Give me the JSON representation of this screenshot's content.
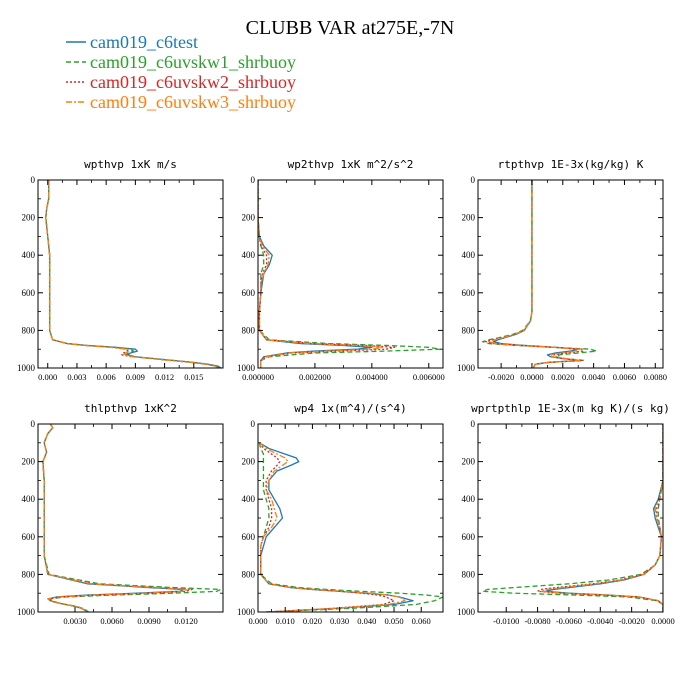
{
  "figure": {
    "title": "CLUBB VAR at275E,-7N"
  },
  "legend": [
    {
      "name": "cam019_c6test",
      "color": "#1f77b4",
      "dash": "solid"
    },
    {
      "name": "cam019_c6uvskw1_shrbuoy",
      "color": "#2ca02c",
      "dash": "dashed"
    },
    {
      "name": "cam019_c6uvskw2_shrbuoy",
      "color": "#d62728",
      "dash": "dotted"
    },
    {
      "name": "cam019_c6uvskw3_shrbuoy",
      "color": "#ff7f0e",
      "dash": "dashdot"
    }
  ],
  "chart_data": [
    {
      "type": "line",
      "title": "wpthvp  1xK m/s",
      "xlim": [
        -0.001,
        0.018
      ],
      "ylim": [
        1000,
        0
      ],
      "x_ticks": [
        0.0,
        0.003,
        0.006,
        0.009,
        0.012,
        0.015
      ],
      "x_tick_labels": [
        "0.000",
        "0.003",
        "0.006",
        "0.009",
        "0.012",
        "0.015"
      ],
      "y_ticks": [
        0,
        200,
        400,
        600,
        800,
        1000
      ],
      "y_tick_labels": [
        "0",
        "200",
        "400",
        "600",
        "800",
        "1000"
      ],
      "y": [
        0,
        100,
        150,
        200,
        300,
        400,
        500,
        600,
        700,
        800,
        850,
        870,
        880,
        890,
        900,
        910,
        920,
        930,
        940,
        950,
        960,
        970,
        980,
        990,
        1000
      ],
      "series": [
        {
          "values": [
            0.0001,
            0.0001,
            -0.0001,
            -0.0002,
            0.0,
            0.0002,
            0.0002,
            0.0002,
            0.0002,
            0.0002,
            0.0005,
            0.002,
            0.004,
            0.007,
            0.009,
            0.0092,
            0.0085,
            0.0082,
            0.009,
            0.011,
            0.013,
            0.015,
            0.0165,
            0.0175,
            0.0178
          ]
        },
        {
          "values": [
            0.0001,
            0.0001,
            -0.0001,
            -0.0002,
            0.0,
            0.0002,
            0.0002,
            0.0002,
            0.0002,
            0.0002,
            0.0005,
            0.002,
            0.004,
            0.0068,
            0.0085,
            0.0088,
            0.0083,
            0.008,
            0.0088,
            0.0108,
            0.0128,
            0.0148,
            0.0163,
            0.0173,
            0.0176
          ]
        },
        {
          "values": [
            0.0001,
            0.0001,
            -0.0001,
            -0.0002,
            0.0,
            0.0002,
            0.0002,
            0.0002,
            0.0002,
            0.0002,
            0.0005,
            0.002,
            0.0038,
            0.0065,
            0.008,
            0.0082,
            0.0078,
            0.0076,
            0.0086,
            0.0106,
            0.0126,
            0.0146,
            0.0162,
            0.0172,
            0.0175
          ]
        },
        {
          "values": [
            0.0001,
            0.0001,
            -0.0001,
            -0.0002,
            0.0,
            0.0002,
            0.0002,
            0.0002,
            0.0002,
            0.0002,
            0.0005,
            0.002,
            0.0039,
            0.0066,
            0.0082,
            0.0084,
            0.008,
            0.0078,
            0.0087,
            0.0107,
            0.0127,
            0.0147,
            0.0162,
            0.0172,
            0.0175
          ]
        }
      ]
    },
    {
      "type": "line",
      "title": "wp2thvp  1xK m^2/s^2",
      "xlim": [
        0,
        0.0065
      ],
      "ylim": [
        1000,
        0
      ],
      "x_ticks": [
        0.0,
        0.002,
        0.004,
        0.006
      ],
      "x_tick_labels": [
        "0.000000",
        "0.002000",
        "0.004000",
        "0.006000"
      ],
      "y_ticks": [
        0,
        200,
        400,
        600,
        800,
        1000
      ],
      "y_tick_labels": [
        "0",
        "200",
        "400",
        "600",
        "800",
        "1000"
      ],
      "y": [
        0,
        100,
        200,
        300,
        350,
        400,
        450,
        500,
        550,
        600,
        700,
        800,
        850,
        870,
        880,
        890,
        900,
        910,
        920,
        940,
        960,
        980,
        1000
      ],
      "series": [
        {
          "values": [
            0.0,
            0.0,
            0.0,
            5e-05,
            0.0002,
            0.0005,
            0.0004,
            0.0002,
            0.00015,
            0.0001,
            5e-05,
            5e-05,
            0.0003,
            0.0015,
            0.003,
            0.004,
            0.0035,
            0.002,
            0.001,
            0.0002,
            0.0001,
            0.0001,
            0.0001
          ]
        },
        {
          "values": [
            0.0,
            0.0,
            0.0,
            5e-05,
            0.0001,
            0.0002,
            0.0002,
            0.0001,
            0.0001,
            0.0001,
            5e-05,
            5e-05,
            0.0004,
            0.0025,
            0.0045,
            0.006,
            0.0064,
            0.0045,
            0.002,
            0.0004,
            0.0001,
            0.0001,
            0.0001
          ]
        },
        {
          "values": [
            0.0,
            0.0,
            0.0,
            5e-05,
            0.0001,
            0.0003,
            0.0003,
            0.00015,
            0.0001,
            0.0001,
            5e-05,
            5e-05,
            0.0003,
            0.002,
            0.0038,
            0.0048,
            0.0045,
            0.0028,
            0.0012,
            0.0003,
            0.0001,
            0.0001,
            0.0001
          ]
        },
        {
          "values": [
            0.0,
            0.0,
            0.0,
            5e-05,
            0.00015,
            0.0004,
            0.00035,
            0.0002,
            0.0001,
            0.0001,
            5e-05,
            5e-05,
            0.0003,
            0.0018,
            0.0034,
            0.0044,
            0.004,
            0.0024,
            0.0011,
            0.0003,
            0.0001,
            0.0001,
            0.0001
          ]
        }
      ]
    },
    {
      "type": "line",
      "title": "rtpthvp  1E-3x(kg/kg) K",
      "xlim": [
        -0.0035,
        0.0085
      ],
      "ylim": [
        1000,
        0
      ],
      "x_ticks": [
        -0.002,
        0.0,
        0.002,
        0.004,
        0.006,
        0.008
      ],
      "x_tick_labels": [
        "-0.0020",
        "0.0000",
        "0.0020",
        "0.0040",
        "0.0060",
        "0.0080"
      ],
      "y_ticks": [
        0,
        200,
        400,
        600,
        800,
        1000
      ],
      "y_tick_labels": [
        "0",
        "200",
        "400",
        "600",
        "800",
        "1000"
      ],
      "y": [
        0,
        100,
        200,
        300,
        400,
        500,
        600,
        700,
        750,
        800,
        820,
        840,
        850,
        860,
        870,
        880,
        890,
        900,
        910,
        920,
        930,
        940,
        950,
        960,
        970,
        980,
        1000
      ],
      "series": [
        {
          "values": [
            0.0,
            0.0,
            0.0,
            0.0,
            0.0,
            0.0,
            0.0,
            0.0,
            -0.0001,
            -0.0005,
            -0.001,
            -0.0018,
            -0.0022,
            -0.0025,
            -0.002,
            -0.0005,
            0.0015,
            0.003,
            0.0025,
            0.0015,
            0.001,
            0.0012,
            0.002,
            0.003,
            0.001,
            0.0002,
            0.0001
          ]
        },
        {
          "values": [
            0.0,
            0.0,
            0.0,
            0.0,
            0.0,
            0.0,
            0.0,
            0.0,
            -0.0001,
            -0.0006,
            -0.0012,
            -0.0022,
            -0.0028,
            -0.0032,
            -0.0028,
            -0.001,
            0.0015,
            0.0038,
            0.0042,
            0.003,
            0.0018,
            0.0015,
            0.0022,
            0.0034,
            0.0012,
            0.0002,
            0.0001
          ]
        },
        {
          "values": [
            0.0,
            0.0,
            0.0,
            0.0,
            0.0,
            0.0,
            0.0,
            0.0,
            -0.0001,
            -0.0005,
            -0.0011,
            -0.002,
            -0.0026,
            -0.003,
            -0.0025,
            -0.0008,
            0.0014,
            0.0033,
            0.0033,
            0.0022,
            0.0014,
            0.0013,
            0.0021,
            0.0032,
            0.0011,
            0.0002,
            0.0001
          ]
        },
        {
          "values": [
            0.0,
            0.0,
            0.0,
            0.0,
            0.0,
            0.0,
            0.0,
            0.0,
            -0.0001,
            -0.0005,
            -0.0011,
            -0.0019,
            -0.0024,
            -0.0028,
            -0.0023,
            -0.0007,
            0.0014,
            0.0031,
            0.0029,
            0.0019,
            0.0012,
            0.0013,
            0.0021,
            0.0031,
            0.0011,
            0.0002,
            0.0001
          ]
        }
      ]
    },
    {
      "type": "line",
      "title": "thlpthvp  1xK^2",
      "xlim": [
        0,
        0.015
      ],
      "ylim": [
        1000,
        0
      ],
      "x_ticks": [
        0.003,
        0.006,
        0.009,
        0.012
      ],
      "x_tick_labels": [
        "0.0030",
        "0.0060",
        "0.0090",
        "0.0120"
      ],
      "y_ticks": [
        0,
        200,
        400,
        600,
        800,
        1000
      ],
      "y_tick_labels": [
        "0",
        "200",
        "400",
        "600",
        "800",
        "1000"
      ],
      "y": [
        0,
        20,
        50,
        100,
        150,
        200,
        300,
        400,
        500,
        600,
        700,
        800,
        850,
        870,
        880,
        890,
        900,
        910,
        920,
        930,
        940,
        950,
        960,
        970,
        980,
        990,
        1000
      ],
      "series": [
        {
          "values": [
            0.001,
            0.0012,
            0.0008,
            0.0005,
            0.0007,
            0.0004,
            0.0005,
            0.0005,
            0.0005,
            0.0005,
            0.0005,
            0.0008,
            0.004,
            0.009,
            0.0118,
            0.0115,
            0.008,
            0.004,
            0.0015,
            0.0008,
            0.001,
            0.0015,
            0.0022,
            0.003,
            0.0035,
            0.0038,
            0.004
          ]
        },
        {
          "values": [
            0.001,
            0.0012,
            0.0008,
            0.0005,
            0.0007,
            0.0004,
            0.0005,
            0.0005,
            0.0005,
            0.0005,
            0.0005,
            0.0009,
            0.005,
            0.011,
            0.0148,
            0.0145,
            0.011,
            0.006,
            0.0022,
            0.001,
            0.0011,
            0.0016,
            0.0023,
            0.0031,
            0.0036,
            0.0039,
            0.0041
          ]
        },
        {
          "values": [
            0.001,
            0.0012,
            0.0008,
            0.0005,
            0.0007,
            0.0004,
            0.0005,
            0.0005,
            0.0005,
            0.0005,
            0.0005,
            0.0008,
            0.0045,
            0.01,
            0.0125,
            0.012,
            0.009,
            0.0048,
            0.0018,
            0.0009,
            0.001,
            0.0015,
            0.0022,
            0.003,
            0.0035,
            0.0038,
            0.004
          ]
        },
        {
          "values": [
            0.001,
            0.0012,
            0.0008,
            0.0005,
            0.0007,
            0.0004,
            0.0005,
            0.0005,
            0.0005,
            0.0005,
            0.0005,
            0.0008,
            0.0043,
            0.0096,
            0.0121,
            0.0118,
            0.0086,
            0.0045,
            0.0017,
            0.0008,
            0.001,
            0.0015,
            0.0022,
            0.003,
            0.0035,
            0.0038,
            0.004
          ]
        }
      ]
    },
    {
      "type": "line",
      "title": "wp4  1x(m^4)/(s^4)",
      "xlim": [
        0,
        0.068
      ],
      "ylim": [
        1000,
        0
      ],
      "x_ticks": [
        0.0,
        0.01,
        0.02,
        0.03,
        0.04,
        0.05,
        0.06
      ],
      "x_tick_labels": [
        "0.000",
        "0.010",
        "0.020",
        "0.030",
        "0.040",
        "0.050",
        "0.060"
      ],
      "y_ticks": [
        0,
        200,
        400,
        600,
        800,
        1000
      ],
      "y_tick_labels": [
        "0",
        "200",
        "400",
        "600",
        "800",
        "1000"
      ],
      "y": [
        100,
        130,
        160,
        180,
        200,
        220,
        250,
        300,
        350,
        400,
        450,
        500,
        550,
        600,
        650,
        700,
        800,
        850,
        870,
        880,
        890,
        900,
        910,
        920,
        940,
        960,
        980,
        1000
      ],
      "series": [
        {
          "values": [
            0.0005,
            0.004,
            0.01,
            0.014,
            0.015,
            0.012,
            0.007,
            0.004,
            0.004,
            0.006,
            0.008,
            0.009,
            0.006,
            0.003,
            0.002,
            0.001,
            0.001,
            0.004,
            0.012,
            0.02,
            0.03,
            0.04,
            0.048,
            0.052,
            0.057,
            0.05,
            0.03,
            0.003
          ]
        },
        {
          "values": [
            0.0005,
            0.001,
            0.002,
            0.002,
            0.002,
            0.002,
            0.002,
            0.002,
            0.002,
            0.003,
            0.004,
            0.004,
            0.003,
            0.002,
            0.001,
            0.001,
            0.001,
            0.005,
            0.015,
            0.025,
            0.038,
            0.052,
            0.062,
            0.068,
            0.065,
            0.058,
            0.035,
            0.003
          ]
        },
        {
          "values": [
            0.0005,
            0.002,
            0.005,
            0.007,
            0.008,
            0.007,
            0.005,
            0.003,
            0.003,
            0.004,
            0.005,
            0.005,
            0.004,
            0.002,
            0.001,
            0.001,
            0.001,
            0.004,
            0.012,
            0.02,
            0.03,
            0.038,
            0.044,
            0.047,
            0.05,
            0.046,
            0.028,
            0.003
          ]
        },
        {
          "values": [
            0.0005,
            0.003,
            0.007,
            0.01,
            0.011,
            0.009,
            0.006,
            0.004,
            0.003,
            0.005,
            0.006,
            0.007,
            0.005,
            0.002,
            0.001,
            0.001,
            0.001,
            0.004,
            0.012,
            0.021,
            0.031,
            0.041,
            0.048,
            0.052,
            0.054,
            0.048,
            0.029,
            0.003
          ]
        }
      ]
    },
    {
      "type": "line",
      "title": "wprtpthlp  1E-3x(m kg K)/(s kg)",
      "xlim": [
        -0.0118,
        0.0
      ],
      "ylim": [
        1000,
        0
      ],
      "x_ticks": [
        -0.01,
        -0.008,
        -0.006,
        -0.004,
        -0.002,
        0.0
      ],
      "x_tick_labels": [
        "-0.0100",
        "-0.0080",
        "-0.0060",
        "-0.0040",
        "-0.0020",
        "0.0000"
      ],
      "y_ticks": [
        0,
        200,
        400,
        600,
        800,
        1000
      ],
      "y_tick_labels": [
        "0",
        "200",
        "400",
        "600",
        "800",
        "1000"
      ],
      "y": [
        0,
        100,
        200,
        300,
        400,
        450,
        500,
        550,
        600,
        700,
        750,
        800,
        830,
        850,
        870,
        880,
        890,
        900,
        910,
        920,
        940,
        960,
        980,
        1000
      ],
      "series": [
        {
          "values": [
            0.0,
            0.0,
            0.0,
            0.0,
            -0.0003,
            -0.0006,
            -0.0005,
            -0.0003,
            -0.0001,
            -0.0002,
            -0.0005,
            -0.0012,
            -0.0025,
            -0.004,
            -0.006,
            -0.007,
            -0.0075,
            -0.006,
            -0.0035,
            -0.0015,
            -0.0003,
            0.0,
            0.0,
            0.0
          ]
        },
        {
          "values": [
            0.0,
            0.0,
            0.0,
            0.0,
            -0.0002,
            -0.0003,
            -0.0003,
            -0.0002,
            -0.0001,
            -0.0002,
            -0.0005,
            -0.0014,
            -0.0035,
            -0.006,
            -0.0095,
            -0.0112,
            -0.0115,
            -0.0095,
            -0.0055,
            -0.0022,
            -0.0004,
            0.0,
            0.0,
            0.0
          ]
        },
        {
          "values": [
            0.0,
            0.0,
            0.0,
            0.0,
            -0.0002,
            -0.0004,
            -0.0004,
            -0.0002,
            -0.0001,
            -0.0002,
            -0.0005,
            -0.0013,
            -0.0028,
            -0.0045,
            -0.0068,
            -0.0078,
            -0.008,
            -0.0065,
            -0.0038,
            -0.0016,
            -0.0003,
            0.0,
            0.0,
            0.0
          ]
        },
        {
          "values": [
            0.0,
            0.0,
            0.0,
            0.0,
            -0.0002,
            -0.0005,
            -0.0004,
            -0.0002,
            -0.0001,
            -0.0002,
            -0.0005,
            -0.0012,
            -0.0027,
            -0.0043,
            -0.0064,
            -0.0074,
            -0.0078,
            -0.0063,
            -0.0036,
            -0.0015,
            -0.0003,
            0.0,
            0.0,
            0.0
          ]
        }
      ]
    }
  ]
}
